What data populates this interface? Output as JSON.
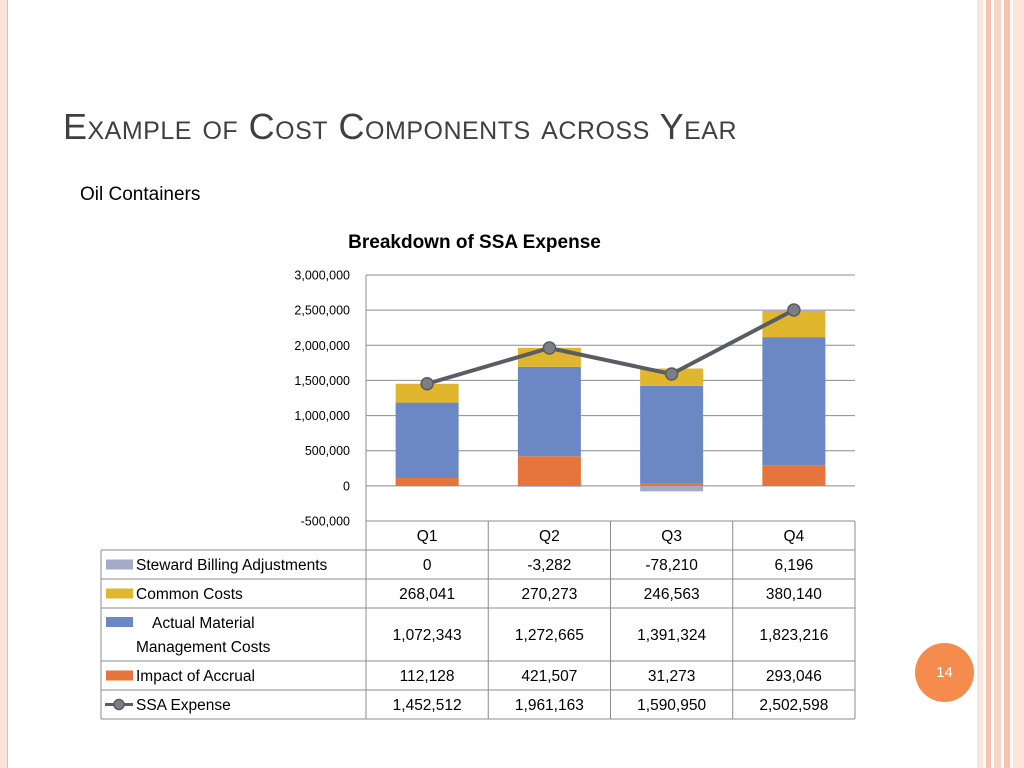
{
  "slide": {
    "title": "Example of Cost Components across Year",
    "subtitle": "Oil Containers",
    "page_number": "14"
  },
  "colors": {
    "steward": "#a5aac8",
    "common": "#dfb62e",
    "actual": "#6b88c4",
    "accrual": "#e5753a",
    "ssa_line": "#595d63",
    "ssa_marker": "#7a7f85",
    "page_badge": "#f58b4c"
  },
  "chart_data": {
    "type": "bar",
    "stacked": true,
    "title": "Breakdown of SSA Expense",
    "categories": [
      "Q1",
      "Q2",
      "Q3",
      "Q4"
    ],
    "ylim": [
      -500000,
      3000000
    ],
    "yticks": [
      3000000,
      2500000,
      2000000,
      1500000,
      1000000,
      500000,
      0,
      -500000
    ],
    "ytick_labels": [
      "3,000,000",
      "2,500,000",
      "2,000,000",
      "1,500,000",
      "1,000,000",
      "500,000",
      "0",
      "-500,000"
    ],
    "grid": true,
    "legend": "data-table",
    "series": [
      {
        "key": "steward",
        "name": "Steward Billing Adjustments",
        "type": "bar",
        "values": [
          0,
          -3282,
          -78210,
          6196
        ],
        "labels": [
          "0",
          "-3,282",
          "-78,210",
          "6,196"
        ]
      },
      {
        "key": "common",
        "name": "Common Costs",
        "type": "bar",
        "values": [
          268041,
          270273,
          246563,
          380140
        ],
        "labels": [
          "268,041",
          "270,273",
          "246,563",
          "380,140"
        ]
      },
      {
        "key": "actual",
        "name": "Actual Material Management Costs",
        "type": "bar",
        "name_lines": [
          "Actual Material",
          "Management Costs"
        ],
        "values": [
          1072343,
          1272665,
          1391324,
          1823216
        ],
        "labels": [
          "1,072,343",
          "1,272,665",
          "1,391,324",
          "1,823,216"
        ]
      },
      {
        "key": "accrual",
        "name": "Impact of Accrual",
        "type": "bar",
        "values": [
          112128,
          421507,
          31273,
          293046
        ],
        "labels": [
          "112,128",
          "421,507",
          "31,273",
          "293,046"
        ]
      },
      {
        "key": "ssa",
        "name": "SSA Expense",
        "type": "line",
        "values": [
          1452512,
          1961163,
          1590950,
          2502598
        ],
        "labels": [
          "1,452,512",
          "1,961,163",
          "1,590,950",
          "2,502,598"
        ]
      }
    ]
  }
}
